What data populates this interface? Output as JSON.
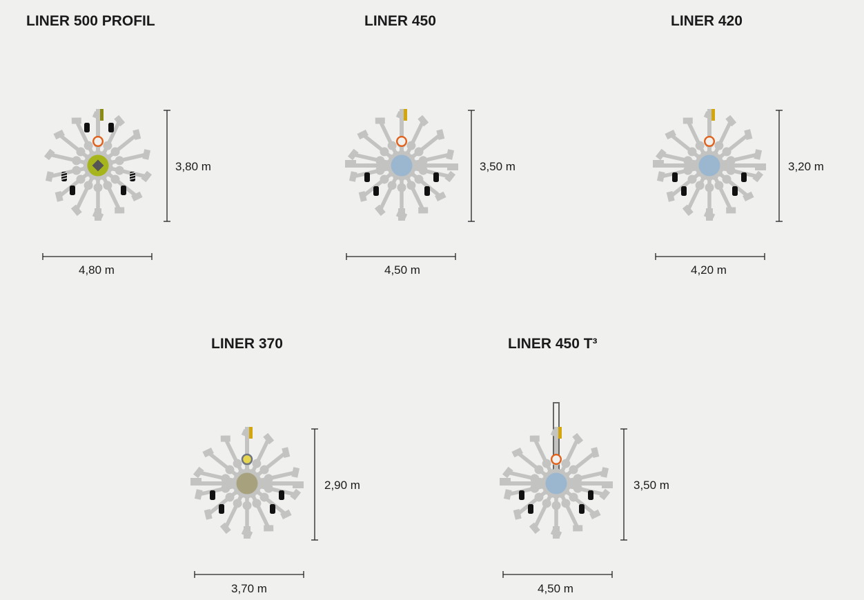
{
  "machines": [
    {
      "name": "LINER 500 PROFIL",
      "width_label": "4,80 m",
      "height_label": "3,80 m",
      "hub_color": "#a6b51c",
      "arm_count": 14,
      "variant": "profil"
    },
    {
      "name": "LINER 450",
      "width_label": "4,50 m",
      "height_label": "3,50 m",
      "hub_color": "#9bb7cf",
      "arm_count": 14,
      "variant": "standard"
    },
    {
      "name": "LINER 420",
      "width_label": "4,20 m",
      "height_label": "3,20 m",
      "hub_color": "#9bb7cf",
      "arm_count": 14,
      "variant": "standard"
    },
    {
      "name": "LINER 370",
      "width_label": "3,70 m",
      "height_label": "2,90 m",
      "hub_color": "#a7a17e",
      "arm_count": 14,
      "variant": "370"
    },
    {
      "name": "LINER 450 T³",
      "width_label": "4,50 m",
      "height_label": "3,50 m",
      "hub_color": "#9bb7cf",
      "arm_count": 14,
      "variant": "t3"
    }
  ],
  "colors": {
    "arm": "#c3c4c2",
    "tire": "#111111",
    "frame": "#d4a60e",
    "frame_profil": "#8a8a14",
    "ring": "#e0601a",
    "text": "#1a1a1a",
    "background": "#f0f1ef"
  }
}
